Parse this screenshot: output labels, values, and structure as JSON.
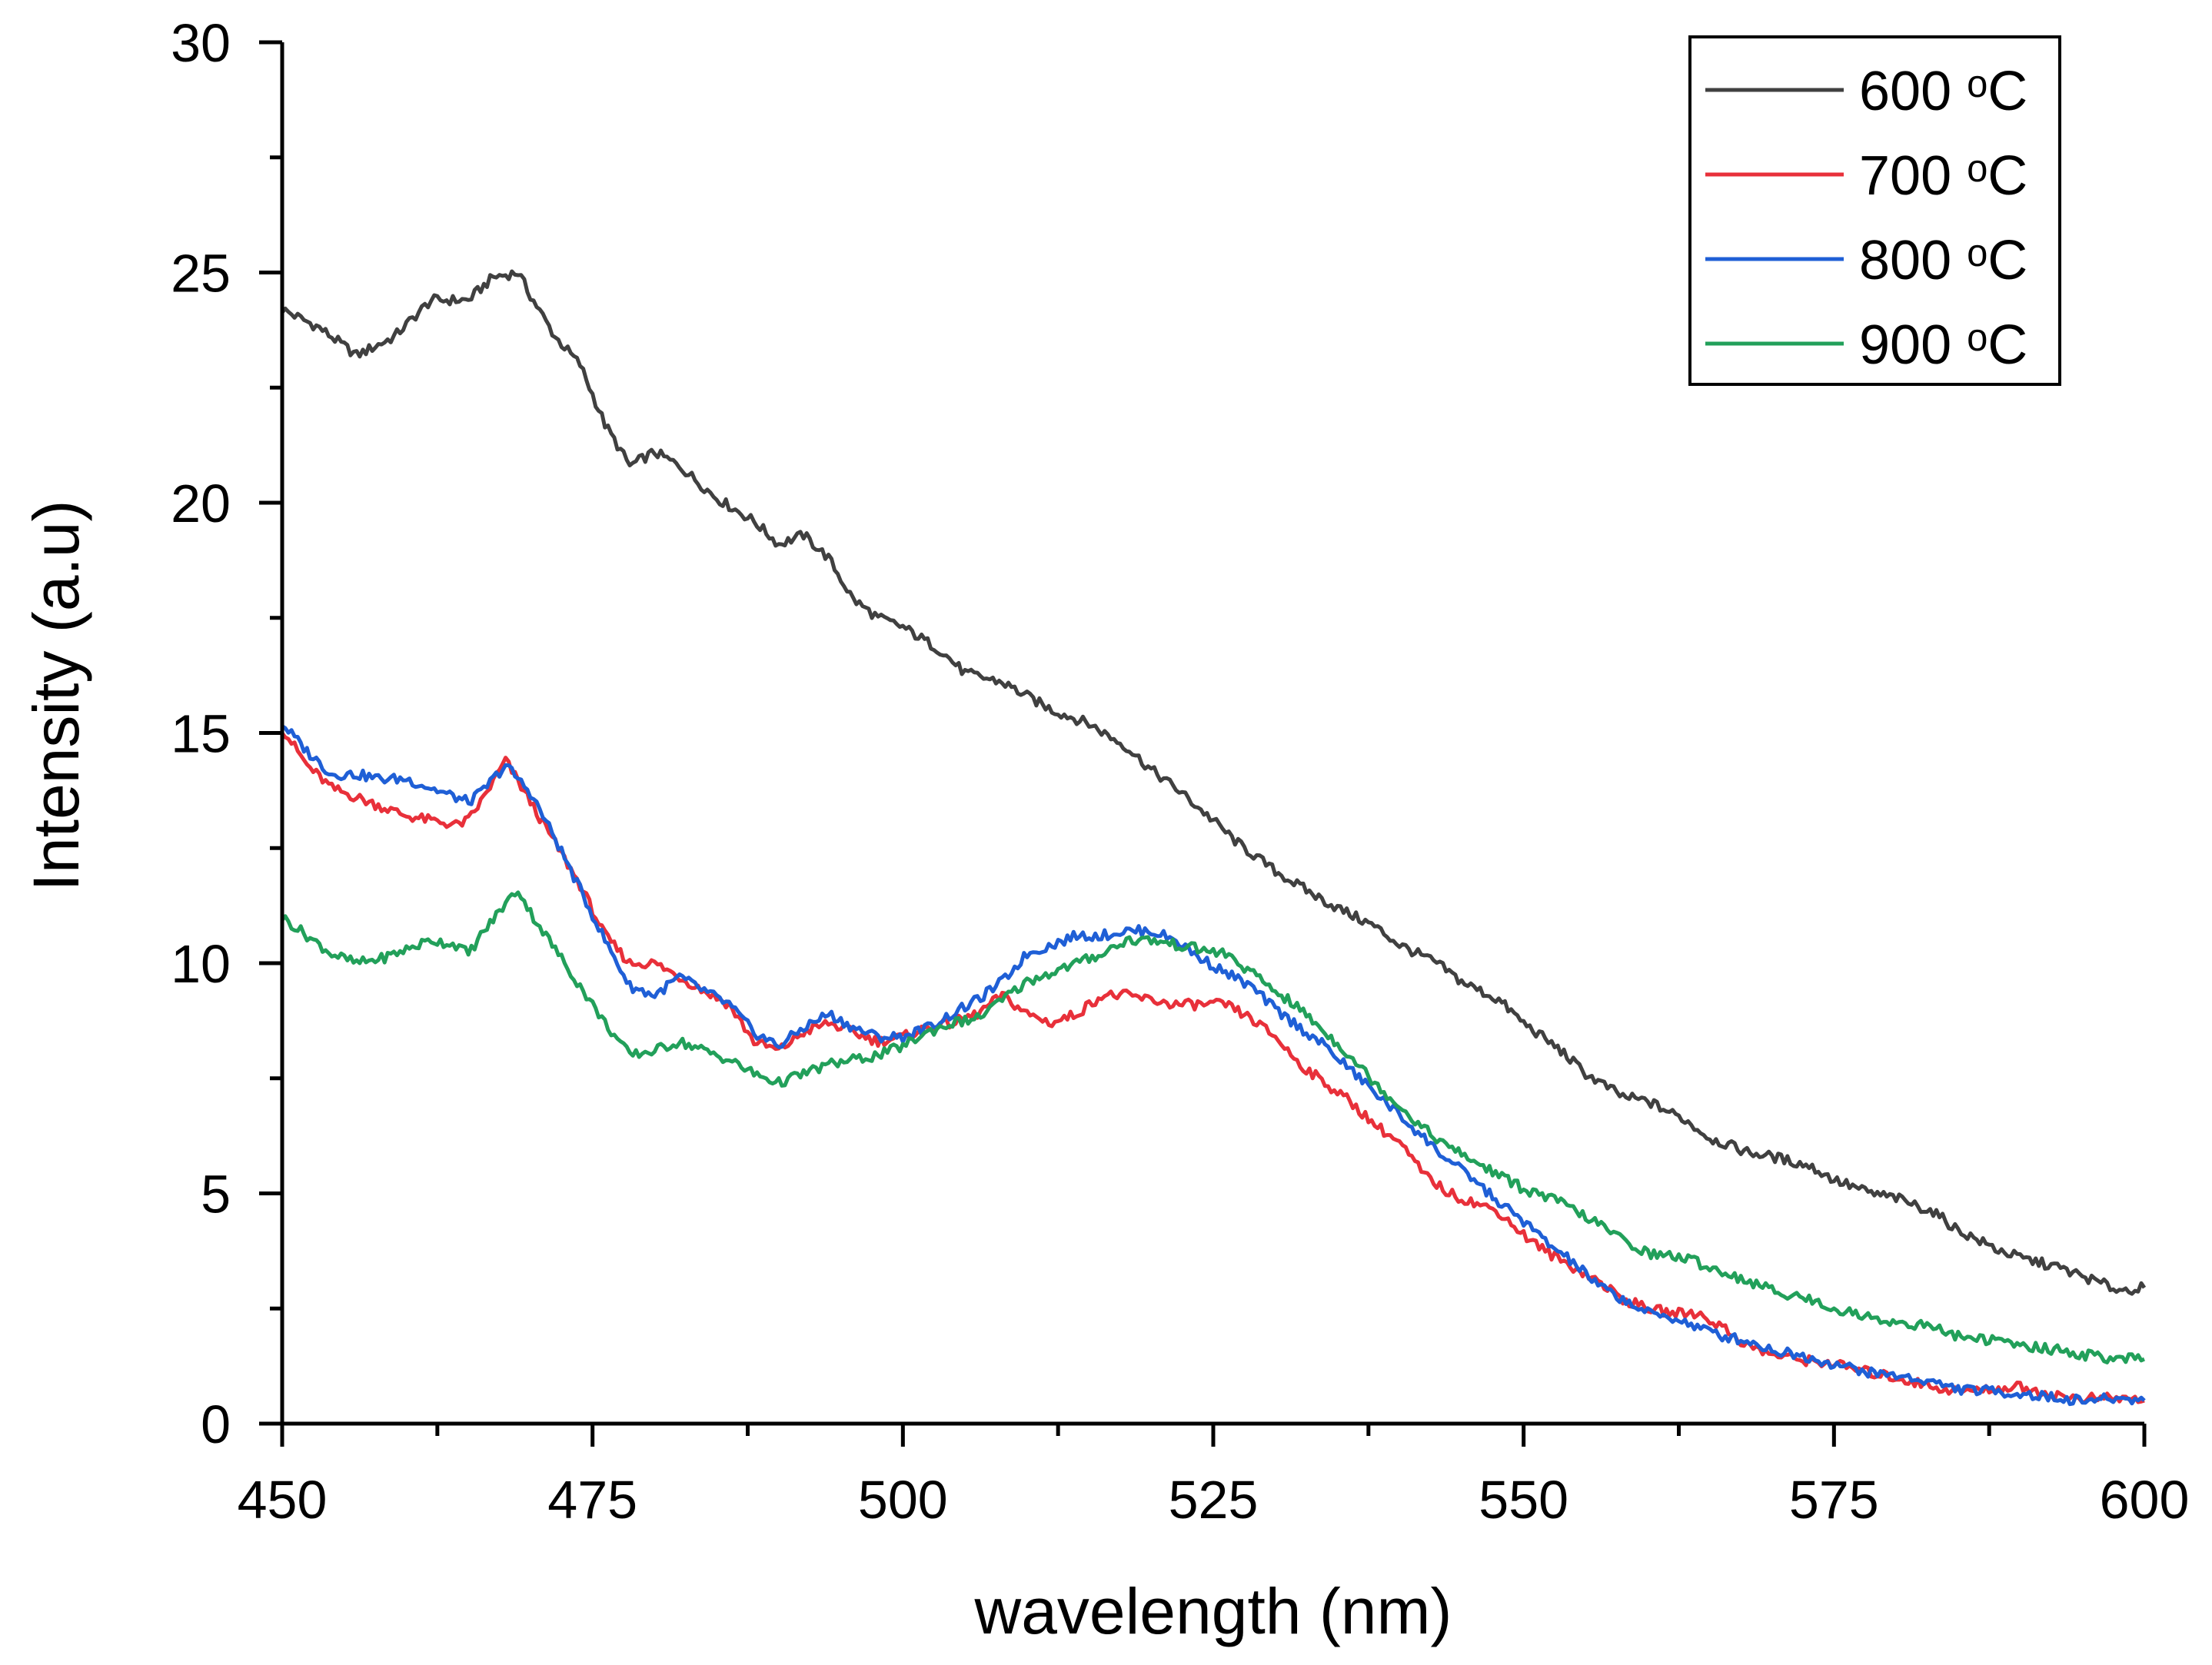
{
  "chart_data": {
    "type": "line",
    "title": "",
    "xlabel": "wavelength (nm)",
    "ylabel": "Intensity (a.u)",
    "xlim": [
      450,
      600
    ],
    "ylim": [
      0,
      30
    ],
    "x_ticks": [
      450,
      475,
      500,
      525,
      550,
      575,
      600
    ],
    "y_ticks": [
      0,
      5,
      10,
      15,
      20,
      25,
      30
    ],
    "x_tick_labels": [
      "450",
      "475",
      "500",
      "525",
      "550",
      "575",
      "600"
    ],
    "y_tick_labels": [
      "0",
      "5",
      "10",
      "15",
      "20",
      "25",
      "30"
    ],
    "grid": false,
    "legend_position": "top-right",
    "series": [
      {
        "name": "600 ᵒC",
        "color": "#404040",
        "x": [
          450,
          453,
          456,
          459,
          462,
          465,
          467,
          469,
          470,
          472,
          474,
          476,
          478,
          480,
          482,
          485,
          488,
          490,
          492,
          494,
          496,
          498,
          500,
          503,
          505,
          508,
          510,
          512,
          515,
          518,
          520,
          522,
          525,
          527,
          530,
          533,
          535,
          538,
          540,
          543,
          545,
          548,
          550,
          553,
          555,
          558,
          560,
          563,
          565,
          568,
          570,
          573,
          575,
          578,
          580,
          583,
          585,
          588,
          590,
          593,
          595,
          598,
          600
        ],
        "values": [
          24.2,
          23.8,
          23.2,
          23.6,
          24.4,
          24.4,
          24.9,
          25.0,
          24.5,
          23.6,
          23.0,
          21.7,
          20.8,
          21.1,
          20.8,
          20.1,
          19.6,
          19.1,
          19.3,
          18.8,
          17.9,
          17.5,
          17.3,
          16.8,
          16.3,
          16.1,
          15.8,
          15.5,
          15.2,
          14.7,
          14.2,
          13.8,
          13.1,
          12.6,
          12.0,
          11.5,
          11.2,
          10.8,
          10.4,
          10.0,
          9.6,
          9.2,
          8.7,
          8.1,
          7.6,
          7.1,
          7.0,
          6.6,
          6.2,
          5.9,
          5.8,
          5.6,
          5.3,
          5.0,
          4.9,
          4.6,
          4.2,
          3.8,
          3.6,
          3.4,
          3.2,
          2.9,
          2.95
        ]
      },
      {
        "name": "700 ᵒC",
        "color": "#e8303a",
        "x": [
          450,
          452,
          454,
          456,
          458,
          460,
          462,
          464,
          465,
          466,
          468,
          470,
          472,
          474,
          476,
          478,
          480,
          482,
          484,
          486,
          488,
          490,
          492,
          494,
          496,
          498,
          500,
          502,
          504,
          506,
          508,
          510,
          512,
          514,
          516,
          518,
          520,
          522,
          524,
          526,
          528,
          530,
          532,
          534,
          536,
          538,
          540,
          542,
          544,
          546,
          548,
          550,
          552,
          554,
          556,
          558,
          560,
          562,
          564,
          566,
          568,
          570,
          572,
          575,
          578,
          580,
          583,
          585,
          588,
          590,
          593,
          595,
          598,
          600
        ],
        "values": [
          15.1,
          14.3,
          13.8,
          13.6,
          13.4,
          13.2,
          13.1,
          13.0,
          13.1,
          13.5,
          14.4,
          13.5,
          12.6,
          11.7,
          10.6,
          10.0,
          10.0,
          9.7,
          9.4,
          9.1,
          8.3,
          8.1,
          8.5,
          8.7,
          8.5,
          8.3,
          8.4,
          8.6,
          8.7,
          8.9,
          9.3,
          8.9,
          8.7,
          8.9,
          9.3,
          9.3,
          9.2,
          9.1,
          9.1,
          9.1,
          8.8,
          8.4,
          7.8,
          7.4,
          7.0,
          6.5,
          6.1,
          5.4,
          5.0,
          4.8,
          4.6,
          4.1,
          3.7,
          3.4,
          3.1,
          2.7,
          2.5,
          2.4,
          2.4,
          2.1,
          1.7,
          1.5,
          1.4,
          1.3,
          1.1,
          1.0,
          0.8,
          0.7,
          0.75,
          0.8,
          0.6,
          0.55,
          0.55,
          0.5
        ]
      },
      {
        "name": "800 ᵒC",
        "color": "#1f5fd6",
        "x": [
          450,
          452,
          454,
          456,
          458,
          460,
          462,
          464,
          465,
          466,
          468,
          470,
          472,
          474,
          476,
          478,
          480,
          482,
          484,
          486,
          488,
          490,
          492,
          494,
          496,
          498,
          500,
          502,
          504,
          506,
          508,
          510,
          512,
          514,
          516,
          518,
          520,
          522,
          524,
          526,
          528,
          530,
          532,
          534,
          536,
          538,
          540,
          542,
          544,
          546,
          548,
          550,
          552,
          554,
          556,
          558,
          560,
          562,
          564,
          566,
          568,
          570,
          572,
          575,
          578,
          580,
          583,
          585,
          588,
          590,
          593,
          595,
          598,
          600
        ],
        "values": [
          15.2,
          14.6,
          14.1,
          14.1,
          14.0,
          14.0,
          13.8,
          13.6,
          13.5,
          13.7,
          14.3,
          13.7,
          12.7,
          11.6,
          10.5,
          9.5,
          9.3,
          9.7,
          9.4,
          9.1,
          8.5,
          8.2,
          8.6,
          8.9,
          8.6,
          8.4,
          8.4,
          8.6,
          8.9,
          9.2,
          9.6,
          10.2,
          10.4,
          10.6,
          10.6,
          10.7,
          10.7,
          10.5,
          10.1,
          9.8,
          9.5,
          9.0,
          8.6,
          8.2,
          7.7,
          7.2,
          6.7,
          6.2,
          5.7,
          5.3,
          4.8,
          4.4,
          3.9,
          3.5,
          3.0,
          2.7,
          2.4,
          2.3,
          2.1,
          1.9,
          1.8,
          1.6,
          1.5,
          1.3,
          1.1,
          1.05,
          0.9,
          0.75,
          0.7,
          0.65,
          0.55,
          0.5,
          0.55,
          0.5
        ]
      },
      {
        "name": "900 ᵒC",
        "color": "#22a05a",
        "x": [
          450,
          452,
          454,
          456,
          458,
          460,
          462,
          464,
          465,
          466,
          468,
          469,
          470,
          472,
          474,
          476,
          478,
          480,
          482,
          484,
          486,
          488,
          490,
          492,
          494,
          496,
          498,
          500,
          502,
          504,
          506,
          508,
          510,
          512,
          514,
          516,
          518,
          520,
          522,
          524,
          526,
          528,
          530,
          532,
          534,
          536,
          538,
          540,
          542,
          544,
          546,
          548,
          550,
          553,
          555,
          558,
          560,
          563,
          565,
          568,
          570,
          573,
          575,
          578,
          580,
          583,
          585,
          588,
          590,
          593,
          595,
          598,
          600
        ],
        "values": [
          11.0,
          10.6,
          10.2,
          10.0,
          10.1,
          10.3,
          10.5,
          10.4,
          10.2,
          10.6,
          11.3,
          11.6,
          11.1,
          10.3,
          9.5,
          8.7,
          8.0,
          8.1,
          8.3,
          8.1,
          7.9,
          7.6,
          7.4,
          7.6,
          7.8,
          7.9,
          8.0,
          8.2,
          8.5,
          8.7,
          8.8,
          9.2,
          9.6,
          9.8,
          10.0,
          10.2,
          10.5,
          10.5,
          10.4,
          10.3,
          10.2,
          9.8,
          9.4,
          9.0,
          8.5,
          8.0,
          7.4,
          6.9,
          6.4,
          6.0,
          5.7,
          5.4,
          5.1,
          4.8,
          4.5,
          4.0,
          3.7,
          3.6,
          3.4,
          3.1,
          2.9,
          2.7,
          2.5,
          2.3,
          2.2,
          2.1,
          1.9,
          1.8,
          1.7,
          1.6,
          1.5,
          1.4,
          1.4
        ]
      }
    ]
  }
}
